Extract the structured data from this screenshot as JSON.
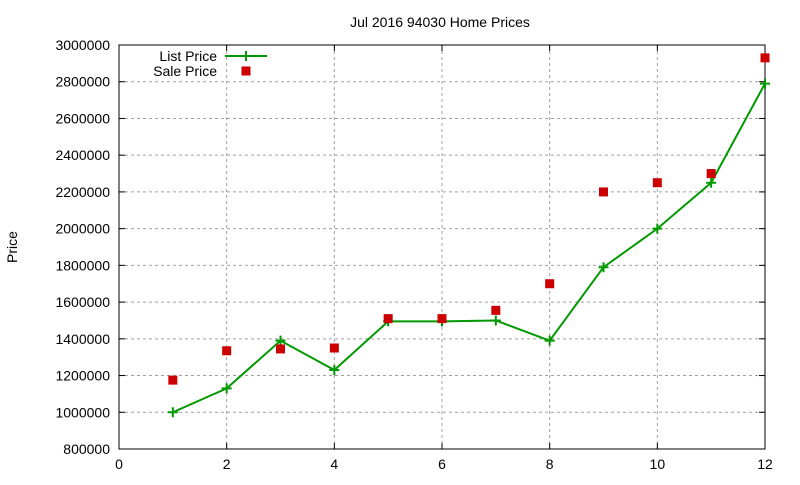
{
  "chart_data": {
    "type": "line",
    "title": "Jul 2016 94030 Home Prices",
    "xlabel": "",
    "ylabel": "Price",
    "xlim": [
      0,
      12
    ],
    "ylim": [
      800000,
      3000000
    ],
    "x_ticks": [
      0,
      2,
      4,
      6,
      8,
      10,
      12
    ],
    "y_ticks": [
      800000,
      1000000,
      1200000,
      1400000,
      1600000,
      1800000,
      2000000,
      2200000,
      2400000,
      2600000,
      2800000,
      3000000
    ],
    "grid": true,
    "legend_position": "top-left",
    "x": [
      1,
      2,
      3,
      4,
      5,
      6,
      7,
      8,
      9,
      10,
      11,
      12
    ],
    "series": [
      {
        "name": "List Price",
        "style": "linespoints",
        "color": "#009900",
        "marker": "plus",
        "values": [
          1000000,
          1130000,
          1390000,
          1230000,
          1495000,
          1495000,
          1500000,
          1390000,
          1790000,
          2000000,
          2250000,
          2790000
        ]
      },
      {
        "name": "Sale Price",
        "style": "points",
        "color": "#cc0000",
        "marker": "square",
        "values": [
          1175000,
          1335000,
          1345000,
          1350000,
          1510000,
          1510000,
          1555000,
          1700000,
          2200000,
          2250000,
          2300000,
          2930000
        ]
      }
    ]
  }
}
